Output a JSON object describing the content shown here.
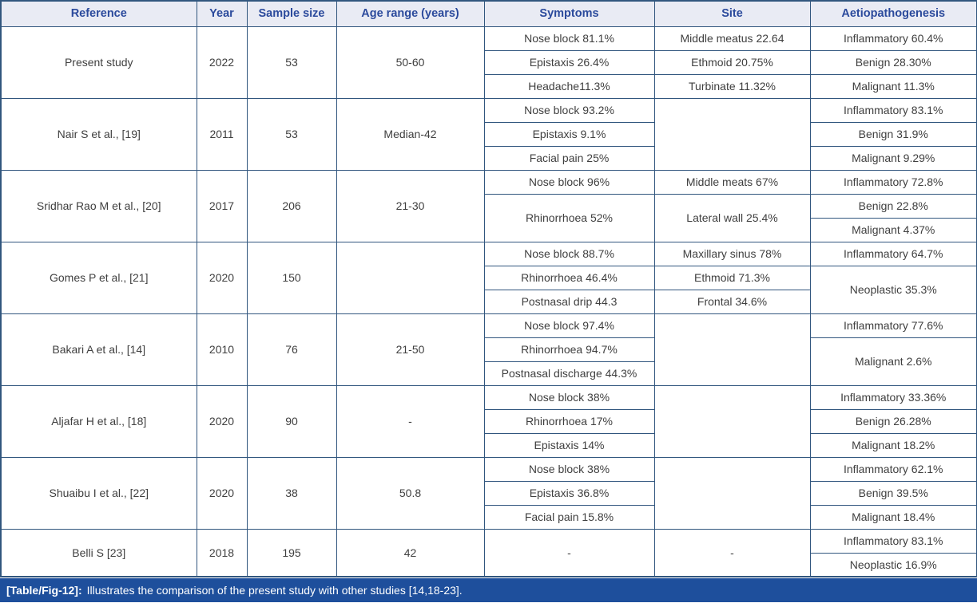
{
  "table": {
    "columns": {
      "reference": "Reference",
      "year": "Year",
      "sample_size": "Sample size",
      "age_range": "Age range (years)",
      "symptoms": "Symptoms",
      "site": "Site",
      "aetiopathogenesis": "Aetiopathogenesis"
    },
    "rows": [
      {
        "reference": "Present study",
        "year": "2022",
        "sample_size": "53",
        "age_range": "50-60",
        "symptoms": [
          "Nose block 81.1%",
          "Epistaxis 26.4%",
          "Headache11.3%"
        ],
        "site": [
          "Middle meatus 22.64",
          "Ethmoid 20.75%",
          "Turbinate 11.32%"
        ],
        "aetio": [
          "Inflammatory 60.4%",
          "Benign 28.30%",
          "Malignant 11.3%"
        ]
      },
      {
        "reference": "Nair S et al., [19]",
        "year": "2011",
        "sample_size": "53",
        "age_range": "Median-42",
        "symptoms": [
          "Nose block 93.2%",
          "Epistaxis 9.1%",
          "Facial pain 25%"
        ],
        "site": [
          ""
        ],
        "aetio": [
          "Inflammatory 83.1%",
          "Benign 31.9%",
          "Malignant 9.29%"
        ]
      },
      {
        "reference": "Sridhar Rao M et al., [20]",
        "year": "2017",
        "sample_size": "206",
        "age_range": "21-30",
        "symptoms": [
          "Nose block 96%",
          "Rhinorrhoea 52%"
        ],
        "site": [
          "Middle meats 67%",
          "Lateral wall 25.4%"
        ],
        "aetio": [
          "Inflammatory 72.8%",
          "Benign 22.8%",
          "Malignant 4.37%"
        ]
      },
      {
        "reference": "Gomes P et al., [21]",
        "year": "2020",
        "sample_size": "150",
        "age_range": "",
        "symptoms": [
          "Nose block 88.7%",
          "Rhinorrhoea 46.4%",
          "Postnasal drip 44.3"
        ],
        "site": [
          "Maxillary sinus 78%",
          "Ethmoid 71.3%",
          "Frontal 34.6%"
        ],
        "aetio": [
          "Inflammatory 64.7%",
          "Neoplastic 35.3%"
        ]
      },
      {
        "reference": "Bakari A et al., [14]",
        "year": "2010",
        "sample_size": "76",
        "age_range": "21-50",
        "symptoms": [
          "Nose block 97.4%",
          "Rhinorrhoea 94.7%",
          "Postnasal discharge 44.3%"
        ],
        "site": [
          ""
        ],
        "aetio": [
          "Inflammatory 77.6%",
          "Malignant 2.6%"
        ]
      },
      {
        "reference": "Aljafar H et al., [18]",
        "year": "2020",
        "sample_size": "90",
        "age_range": "-",
        "symptoms": [
          "Nose block 38%",
          "Rhinorrhoea 17%",
          "Epistaxis 14%"
        ],
        "site": [
          ""
        ],
        "aetio": [
          "Inflammatory 33.36%",
          "Benign 26.28%",
          "Malignant 18.2%"
        ]
      },
      {
        "reference": "Shuaibu I et al., [22]",
        "year": "2020",
        "sample_size": "38",
        "age_range": "50.8",
        "symptoms": [
          "Nose block 38%",
          "Epistaxis 36.8%",
          "Facial pain 15.8%"
        ],
        "site": [
          ""
        ],
        "aetio": [
          "Inflammatory 62.1%",
          "Benign 39.5%",
          "Malignant 18.4%"
        ]
      },
      {
        "reference": "Belli S [23]",
        "year": "2018",
        "sample_size": "195",
        "age_range": "42",
        "symptoms": [
          "-"
        ],
        "site": [
          "-"
        ],
        "aetio": [
          "Inflammatory 83.1%",
          "Neoplastic 16.9%"
        ]
      }
    ],
    "caption": {
      "label": "[Table/Fig-12]:",
      "text": "Illustrates the comparison of the present study with other studies [14,18-23]."
    }
  },
  "colors": {
    "header_bg": "#e9ebf4",
    "header_text": "#2b4a9c",
    "grid_border": "#31567e",
    "body_text": "#3f3f3f",
    "caption_bg": "#1e4f9c",
    "caption_text": "#ffffff"
  }
}
